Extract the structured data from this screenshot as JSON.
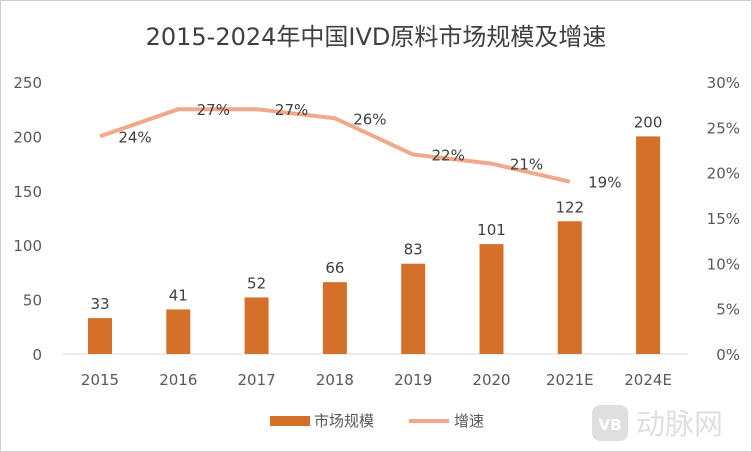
{
  "chart_data": {
    "type": "bar+line",
    "title": "2015-2024年中国IVD原料市场规模及增速",
    "categories": [
      "2015",
      "2016",
      "2017",
      "2018",
      "2019",
      "2020",
      "2021E",
      "2024E"
    ],
    "series": [
      {
        "name": "市场规模",
        "type": "bar",
        "axis": "left",
        "values": [
          33,
          41,
          52,
          66,
          83,
          101,
          122,
          200
        ],
        "color": "#D4702A"
      },
      {
        "name": "增速",
        "type": "line",
        "axis": "right",
        "values": [
          24,
          27,
          27,
          26,
          22,
          21,
          19,
          null
        ],
        "labels": [
          "24%",
          "27%",
          "27%",
          "26%",
          "22%",
          "21%",
          "19%",
          null
        ],
        "color": "#F0A98A"
      }
    ],
    "y_left": {
      "range": [
        0,
        250
      ],
      "ticks": [
        "0",
        "50",
        "100",
        "150",
        "200",
        "250"
      ]
    },
    "y_right": {
      "range": [
        0,
        30
      ],
      "ticks": [
        "0%",
        "5%",
        "10%",
        "15%",
        "20%",
        "25%",
        "30%"
      ]
    },
    "grid": false,
    "legend": "bottom"
  },
  "watermark": "动脉网"
}
